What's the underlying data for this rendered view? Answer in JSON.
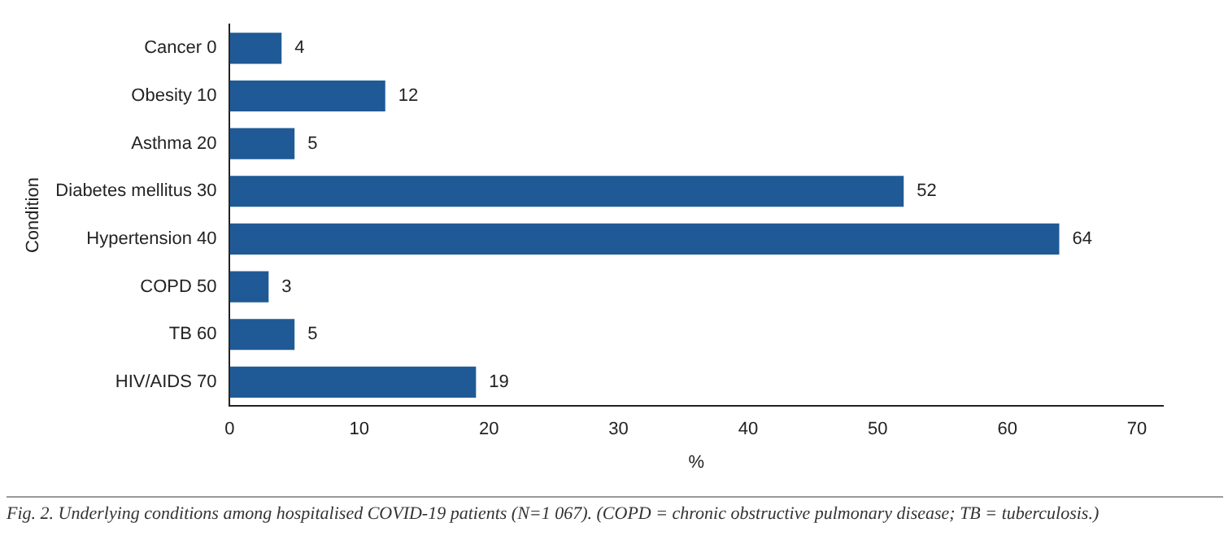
{
  "chart_data": {
    "type": "bar",
    "orientation": "horizontal",
    "categories": [
      "Cancer 0",
      "Obesity 10",
      "Asthma 20",
      "Diabetes mellitus 30",
      "Hypertension 40",
      "COPD 50",
      "TB 60",
      "HIV/AIDS 70"
    ],
    "values": [
      4,
      12,
      5,
      52,
      64,
      3,
      5,
      19
    ],
    "color": "#1f5a96",
    "xlim": [
      0,
      72
    ],
    "xticks": [
      0,
      10,
      20,
      30,
      40,
      50,
      60,
      70
    ],
    "xlabel": "%",
    "ylabel": "Condition",
    "data_labels": true,
    "grid": false,
    "legend": false,
    "annotations": [
      "Fig. 2. Underlying conditions among hospitalised COVID-19 patients (N=1 067). (COPD = chronic obstructive pulmonary disease; TB = tuberculosis.)"
    ]
  }
}
